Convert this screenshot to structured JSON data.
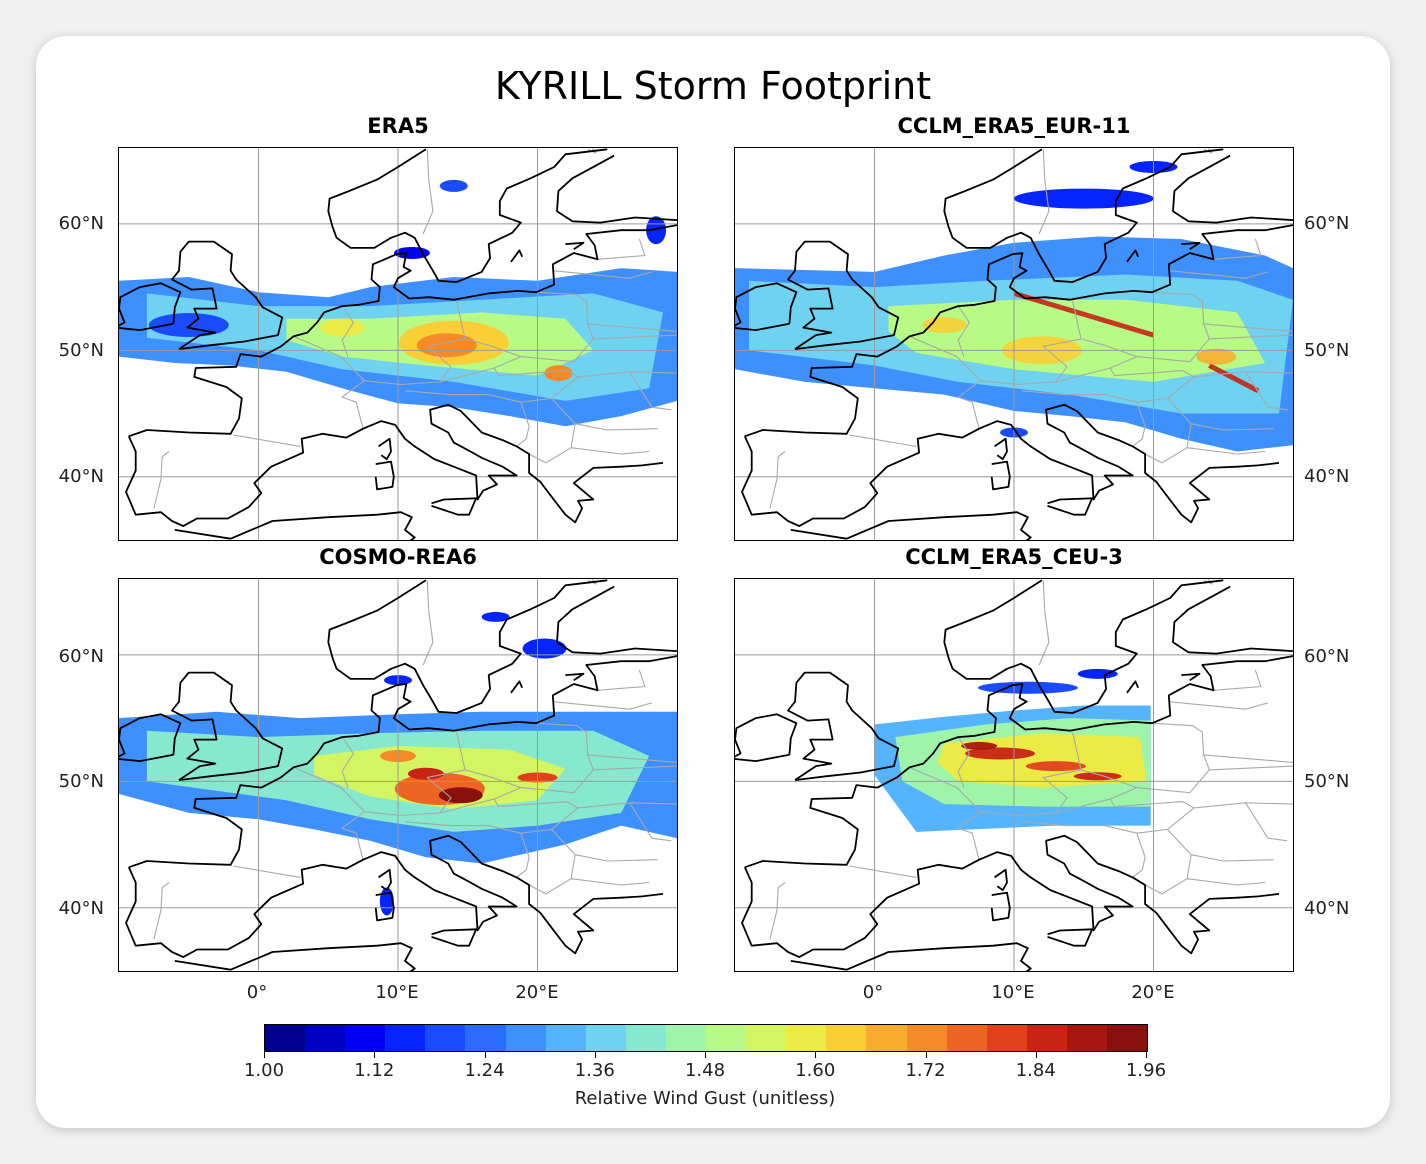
{
  "figure": {
    "title": "KYRILL Storm Footprint"
  },
  "panels": [
    {
      "title": "ERA5",
      "variant": "era5",
      "lat_labels_side": "left",
      "lon_labels": false
    },
    {
      "title": "CCLM_ERA5_EUR-11",
      "variant": "eur11",
      "lat_labels_side": "right",
      "lon_labels": false
    },
    {
      "title": "COSMO-REA6",
      "variant": "rea6",
      "lat_labels_side": "left",
      "lon_labels": true
    },
    {
      "title": "CCLM_ERA5_CEU-3",
      "variant": "ceu3",
      "lat_labels_side": "right",
      "lon_labels": true
    }
  ],
  "axes": {
    "lat_ticks": [
      "60°N",
      "50°N",
      "40°N"
    ],
    "lon_ticks": [
      "0°",
      "10°E",
      "20°E"
    ],
    "lon_range": [
      -10,
      30
    ],
    "lat_range": [
      35,
      66
    ]
  },
  "colorbar": {
    "label": "Relative Wind Gust (unitless)",
    "ticks": [
      "1.00",
      "1.12",
      "1.24",
      "1.36",
      "1.48",
      "1.60",
      "1.72",
      "1.84",
      "1.96"
    ],
    "range": [
      1.0,
      1.96
    ],
    "step": 0.04,
    "colormap": "jet",
    "colors": [
      "#00008f",
      "#0000c4",
      "#0000f5",
      "#0624ff",
      "#1a4cff",
      "#2b6cff",
      "#3f90ff",
      "#55b4ff",
      "#6ed2f0",
      "#86e8cf",
      "#9ef5aa",
      "#b8fa86",
      "#d4f562",
      "#ecea44",
      "#f9cf35",
      "#f9ad2e",
      "#f58a28",
      "#ee6422",
      "#e0401c",
      "#c82416",
      "#a81612",
      "#8a100e"
    ]
  }
}
